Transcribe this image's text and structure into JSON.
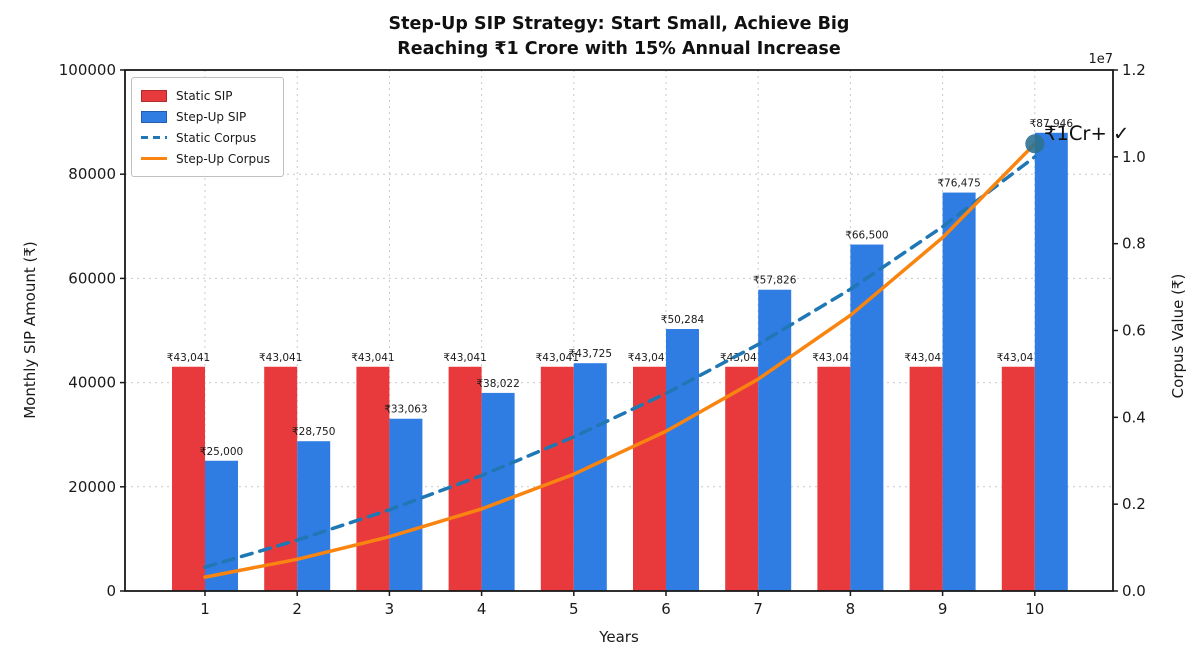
{
  "title": {
    "line1": "Step-Up SIP Strategy: Start Small, Achieve Big",
    "line2": "Reaching ₹1 Crore with 15% Annual Increase"
  },
  "axes": {
    "x_label": "Years",
    "y_left_label": "Monthly SIP Amount (₹)",
    "y_right_label": "Corpus Value (₹)",
    "y_right_offset": "1e7",
    "x_ticks": [
      "1",
      "2",
      "3",
      "4",
      "5",
      "6",
      "7",
      "8",
      "9",
      "10"
    ],
    "y_left_ticks": [
      "0",
      "20000",
      "40000",
      "60000",
      "80000",
      "100000"
    ],
    "y_left_tick_values": [
      0,
      20000,
      40000,
      60000,
      80000,
      100000
    ],
    "y_right_ticks": [
      "0.0",
      "0.2",
      "0.4",
      "0.6",
      "0.8",
      "1.0",
      "1.2"
    ],
    "y_right_tick_values": [
      0,
      2000000,
      4000000,
      6000000,
      8000000,
      10000000,
      12000000
    ]
  },
  "legend": [
    {
      "label": "Static SIP"
    },
    {
      "label": "Step-Up SIP"
    },
    {
      "label": "Static Corpus"
    },
    {
      "label": "Step-Up Corpus"
    }
  ],
  "annotation": "₹1Cr+  ✓",
  "colors": {
    "static_sip_bar": "#e83a3d",
    "stepup_sip_bar": "#2f7ce2",
    "static_corpus_line": "#1f77b4",
    "stepup_corpus_line": "#f98410",
    "end_marker": "#2e7191",
    "grid": "#c9c9c9",
    "spine": "#1a1a1a"
  },
  "chart_data": {
    "type": "combo: grouped bar (left axis) + dual-axis lines (right axis)",
    "categories": [
      1,
      2,
      3,
      4,
      5,
      6,
      7,
      8,
      9,
      10
    ],
    "xlabel": "Years",
    "ylabel_left": "Monthly SIP Amount (₹)",
    "ylabel_right": "Corpus Value (₹)",
    "ylim_left": [
      0,
      100000
    ],
    "ylim_right": [
      0,
      12000000
    ],
    "grid": true,
    "legend_position": "upper left",
    "series": [
      {
        "name": "Static SIP",
        "type": "bar",
        "axis": "left",
        "color": "#e83a3d",
        "values": [
          43041,
          43041,
          43041,
          43041,
          43041,
          43041,
          43041,
          43041,
          43041,
          43041
        ],
        "labels": [
          "₹43,041",
          "₹43,041",
          "₹43,041",
          "₹43,041",
          "₹43,041",
          "₹43,041",
          "₹43,041",
          "₹43,041",
          "₹43,041",
          "₹43,041"
        ]
      },
      {
        "name": "Step-Up SIP",
        "type": "bar",
        "axis": "left",
        "color": "#2f7ce2",
        "values": [
          25000,
          28750,
          33063,
          38022,
          43725,
          50284,
          57826,
          66500,
          76475,
          87946
        ],
        "labels": [
          "₹25,000",
          "₹28,750",
          "₹33,063",
          "₹38,022",
          "₹43,725",
          "₹50,284",
          "₹57,826",
          "₹66,500",
          "₹76,475",
          "₹87,946"
        ]
      },
      {
        "name": "Static Corpus",
        "type": "line-dashed",
        "axis": "right",
        "color": "#1f77b4",
        "values": [
          550000,
          1170000,
          1870000,
          2660000,
          3550000,
          4550000,
          5680000,
          6950000,
          8390000,
          10000000
        ]
      },
      {
        "name": "Step-Up Corpus",
        "type": "line",
        "axis": "right",
        "color": "#f98410",
        "values": [
          320000,
          730000,
          1250000,
          1890000,
          2690000,
          3680000,
          4880000,
          6350000,
          8140000,
          10300000
        ]
      }
    ],
    "end_marker": {
      "series": "Step-Up Corpus",
      "x": 10,
      "color": "#2e7191"
    },
    "annotation": {
      "text": "₹1Cr+  ✓",
      "x": 10,
      "y": 10700000
    }
  }
}
